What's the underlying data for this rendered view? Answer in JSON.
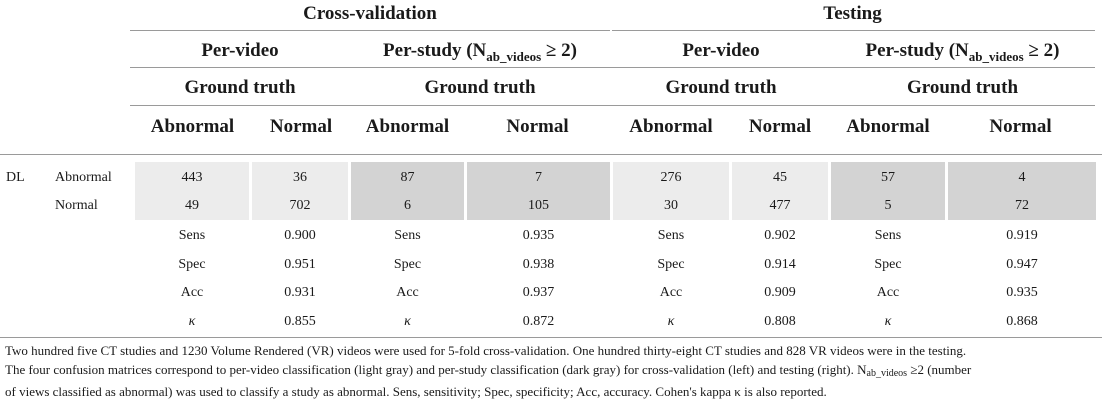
{
  "header": {
    "cross_validation": "Cross-validation",
    "testing": "Testing",
    "per_video": "Per-video",
    "per_study_prefix": "Per-study (N",
    "per_study_sub": "ab_videos",
    "per_study_suffix": " ≥ 2)",
    "ground_truth": "Ground truth",
    "abnormal": "Abnormal",
    "normal": "Normal"
  },
  "row_labels": {
    "dl": "DL",
    "abnormal": "Abnormal",
    "normal": "Normal"
  },
  "matrices": [
    {
      "name": "cv-per-video",
      "shade": "light",
      "cells": [
        [
          "443",
          "36"
        ],
        [
          "49",
          "702"
        ]
      ],
      "metrics": [
        [
          "Sens",
          "0.900"
        ],
        [
          "Spec",
          "0.951"
        ],
        [
          "Acc",
          "0.931"
        ],
        [
          "κ",
          "0.855"
        ]
      ]
    },
    {
      "name": "cv-per-study",
      "shade": "dark",
      "cells": [
        [
          "87",
          "7"
        ],
        [
          "6",
          "105"
        ]
      ],
      "metrics": [
        [
          "Sens",
          "0.935"
        ],
        [
          "Spec",
          "0.938"
        ],
        [
          "Acc",
          "0.937"
        ],
        [
          "κ",
          "0.872"
        ]
      ]
    },
    {
      "name": "test-per-video",
      "shade": "light",
      "cells": [
        [
          "276",
          "45"
        ],
        [
          "30",
          "477"
        ]
      ],
      "metrics": [
        [
          "Sens",
          "0.902"
        ],
        [
          "Spec",
          "0.914"
        ],
        [
          "Acc",
          "0.909"
        ],
        [
          "κ",
          "0.808"
        ]
      ]
    },
    {
      "name": "test-per-study",
      "shade": "dark",
      "cells": [
        [
          "57",
          "4"
        ],
        [
          "5",
          "72"
        ]
      ],
      "metrics": [
        [
          "Sens",
          "0.919"
        ],
        [
          "Spec",
          "0.947"
        ],
        [
          "Acc",
          "0.935"
        ],
        [
          "κ",
          "0.868"
        ]
      ]
    }
  ],
  "colors": {
    "light_gray": "#ececec",
    "dark_gray": "#d3d3d3",
    "rule": "#9a9a9a"
  },
  "footnote": {
    "line1": "Two hundred five CT studies and 1230 Volume Rendered (VR) videos were used for 5-fold cross-validation. One hundred thirty-eight CT studies and 828 VR videos were in the testing.",
    "line2": "The four confusion matrices correspond to per-video classification (light gray) and per-study classification (dark gray) for cross-validation (left) and testing (right). N",
    "line2_sub": "ab_videos",
    "line2_after": " ≥2 (number",
    "line3": "of views classified as abnormal) was used to classify a study as abnormal. Sens, sensitivity; Spec, specificity; Acc, accuracy. Cohen's kappa κ is also reported."
  }
}
